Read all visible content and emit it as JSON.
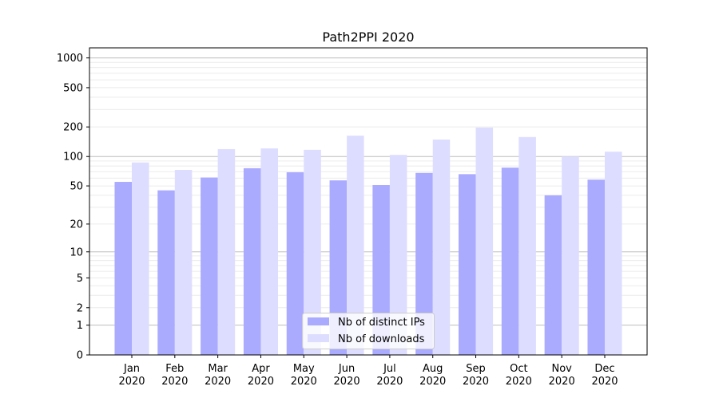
{
  "chart_data": {
    "type": "bar",
    "title": "Path2PPI 2020",
    "xlabel": "",
    "ylabel": "",
    "y_scale": "log10(y+1)",
    "ylim": [
      0,
      1264
    ],
    "grid": "horizontal, major and minor",
    "legend_position": "lower center",
    "categories": [
      "Jan\n2020",
      "Feb\n2020",
      "Mar\n2020",
      "Apr\n2020",
      "May\n2020",
      "Jun\n2020",
      "Jul\n2020",
      "Aug\n2020",
      "Sep\n2020",
      "Oct\n2020",
      "Nov\n2020",
      "Dec\n2020"
    ],
    "y_ticks": [
      0,
      1,
      2,
      5,
      10,
      20,
      50,
      100,
      200,
      500,
      1000
    ],
    "series": [
      {
        "name": "Nb of distinct IPs",
        "color": "#aaaaff",
        "values": [
          55,
          45,
          61,
          76,
          69,
          57,
          51,
          68,
          66,
          77,
          40,
          58
        ]
      },
      {
        "name": "Nb of downloads",
        "color": "#ddddff",
        "values": [
          87,
          73,
          119,
          121,
          117,
          163,
          104,
          149,
          197,
          158,
          100,
          112
        ]
      }
    ]
  }
}
